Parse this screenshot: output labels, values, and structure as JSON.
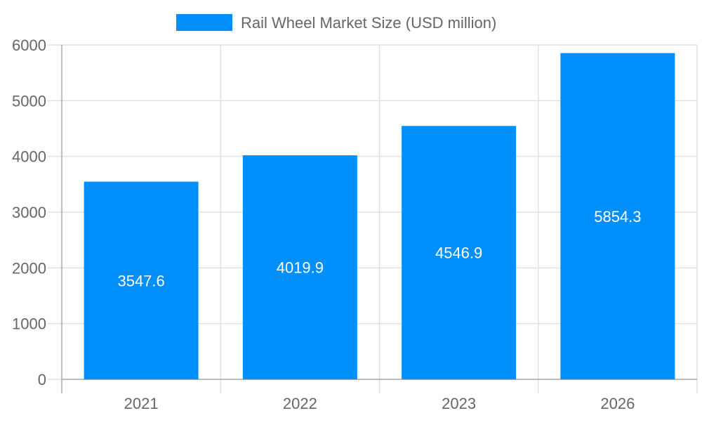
{
  "chart_data": {
    "type": "bar",
    "categories": [
      "2021",
      "2022",
      "2023",
      "2026"
    ],
    "series": [
      {
        "name": "Rail Wheel Market Size (USD million)",
        "values": [
          3547.6,
          4019.9,
          4546.9,
          5854.3
        ],
        "color": "#008ffb"
      }
    ],
    "data_labels": [
      "3547.6",
      "4019.9",
      "4546.9",
      "5854.3"
    ],
    "yticks": [
      "0",
      "1000",
      "2000",
      "3000",
      "4000",
      "5000",
      "6000"
    ],
    "ylim": [
      0,
      6000
    ],
    "grid": true,
    "legend": "top-center",
    "title": "",
    "xlabel": "",
    "ylabel": ""
  }
}
